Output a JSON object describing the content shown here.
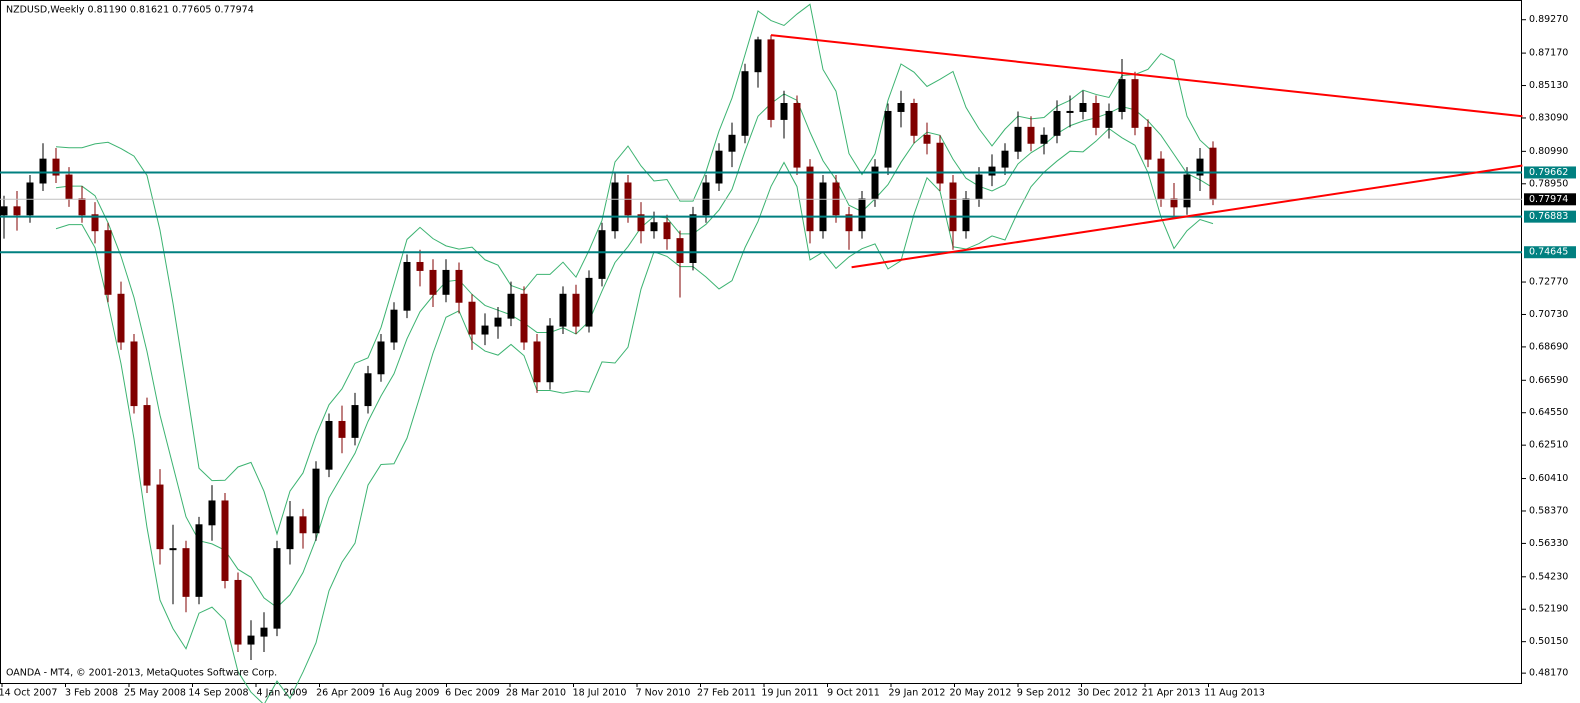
{
  "chart_data": {
    "type": "candlestick",
    "title": "NZDUSD,Weekly  0.81190 0.81621 0.77605 0.77974",
    "footer": "OANDA - MT4, © 2001-2013, MetaQuotes Software Corp.",
    "up_color": "#000000",
    "down_color": "#800000",
    "band_color": "#3cb371",
    "ylim": [
      0.4755,
      0.9051
    ],
    "yticks": [
      {
        "value": 0.8927,
        "label": "0.89270"
      },
      {
        "value": 0.8717,
        "label": "0.87170"
      },
      {
        "value": 0.8513,
        "label": "0.85130"
      },
      {
        "value": 0.8309,
        "label": "0.83090"
      },
      {
        "value": 0.8099,
        "label": "0.80990"
      },
      {
        "value": 0.7895,
        "label": "0.78950"
      },
      {
        "value": 0.7277,
        "label": "0.72770"
      },
      {
        "value": 0.7073,
        "label": "0.70730"
      },
      {
        "value": 0.6869,
        "label": "0.68690"
      },
      {
        "value": 0.6659,
        "label": "0.66590"
      },
      {
        "value": 0.6455,
        "label": "0.64550"
      },
      {
        "value": 0.6251,
        "label": "0.62510"
      },
      {
        "value": 0.6041,
        "label": "0.60410"
      },
      {
        "value": 0.5837,
        "label": "0.58370"
      },
      {
        "value": 0.5633,
        "label": "0.56330"
      },
      {
        "value": 0.5423,
        "label": "0.54230"
      },
      {
        "value": 0.5219,
        "label": "0.52190"
      },
      {
        "value": 0.5015,
        "label": "0.50150"
      },
      {
        "value": 0.4817,
        "label": "0.48170"
      }
    ],
    "xticks": [
      "14 Oct 2007",
      "3 Feb 2008",
      "25 May 2008",
      "14 Sep 2008",
      "4 Jan 2009",
      "26 Apr 2009",
      "16 Aug 2009",
      "6 Dec 2009",
      "28 Mar 2010",
      "18 Jul 2010",
      "7 Nov 2010",
      "27 Feb 2011",
      "19 Jun 2011",
      "9 Oct 2011",
      "29 Jan 2012",
      "20 May 2012",
      "9 Sep 2012",
      "30 Dec 2012",
      "21 Apr 2013",
      "11 Aug 2013"
    ],
    "hlines": [
      {
        "value": 0.79662,
        "color": "#008080"
      },
      {
        "value": 0.76883,
        "color": "#008080"
      },
      {
        "value": 0.74645,
        "color": "#008080"
      }
    ],
    "current_price": 0.77974,
    "trendlines": [
      {
        "color": "#ff0000",
        "x": [
          59,
          116.8
        ],
        "y": [
          0.883,
          0.832
        ]
      },
      {
        "color": "#ff0000",
        "x": [
          65.2,
          116.8
        ],
        "y": [
          0.737,
          0.801
        ]
      }
    ],
    "candles": [
      [
        0.77,
        0.782,
        0.755,
        0.775
      ],
      [
        0.775,
        0.785,
        0.76,
        0.77
      ],
      [
        0.77,
        0.795,
        0.765,
        0.79
      ],
      [
        0.79,
        0.815,
        0.785,
        0.805
      ],
      [
        0.805,
        0.812,
        0.79,
        0.795
      ],
      [
        0.795,
        0.8,
        0.775,
        0.78
      ],
      [
        0.78,
        0.788,
        0.765,
        0.77
      ],
      [
        0.77,
        0.778,
        0.752,
        0.76
      ],
      [
        0.76,
        0.765,
        0.715,
        0.72
      ],
      [
        0.72,
        0.728,
        0.685,
        0.69
      ],
      [
        0.69,
        0.695,
        0.645,
        0.65
      ],
      [
        0.65,
        0.655,
        0.595,
        0.6
      ],
      [
        0.6,
        0.61,
        0.55,
        0.56
      ],
      [
        0.56,
        0.575,
        0.525,
        0.56
      ],
      [
        0.56,
        0.565,
        0.52,
        0.53
      ],
      [
        0.53,
        0.58,
        0.525,
        0.575
      ],
      [
        0.575,
        0.6,
        0.565,
        0.59
      ],
      [
        0.59,
        0.595,
        0.535,
        0.54
      ],
      [
        0.54,
        0.545,
        0.495,
        0.5
      ],
      [
        0.5,
        0.515,
        0.49,
        0.505
      ],
      [
        0.505,
        0.52,
        0.495,
        0.51
      ],
      [
        0.51,
        0.565,
        0.505,
        0.56
      ],
      [
        0.56,
        0.59,
        0.55,
        0.58
      ],
      [
        0.58,
        0.585,
        0.56,
        0.57
      ],
      [
        0.57,
        0.615,
        0.565,
        0.61
      ],
      [
        0.61,
        0.645,
        0.605,
        0.64
      ],
      [
        0.64,
        0.65,
        0.62,
        0.63
      ],
      [
        0.63,
        0.658,
        0.625,
        0.65
      ],
      [
        0.65,
        0.675,
        0.645,
        0.67
      ],
      [
        0.67,
        0.695,
        0.665,
        0.69
      ],
      [
        0.69,
        0.715,
        0.685,
        0.71
      ],
      [
        0.71,
        0.745,
        0.705,
        0.74
      ],
      [
        0.74,
        0.748,
        0.725,
        0.735
      ],
      [
        0.735,
        0.742,
        0.712,
        0.72
      ],
      [
        0.72,
        0.742,
        0.715,
        0.735
      ],
      [
        0.735,
        0.74,
        0.708,
        0.715
      ],
      [
        0.715,
        0.72,
        0.685,
        0.695
      ],
      [
        0.695,
        0.708,
        0.688,
        0.7
      ],
      [
        0.7,
        0.712,
        0.692,
        0.705
      ],
      [
        0.705,
        0.728,
        0.7,
        0.72
      ],
      [
        0.72,
        0.725,
        0.685,
        0.69
      ],
      [
        0.69,
        0.695,
        0.658,
        0.665
      ],
      [
        0.665,
        0.705,
        0.66,
        0.7
      ],
      [
        0.7,
        0.725,
        0.695,
        0.72
      ],
      [
        0.72,
        0.726,
        0.695,
        0.7
      ],
      [
        0.7,
        0.735,
        0.696,
        0.73
      ],
      [
        0.73,
        0.765,
        0.725,
        0.76
      ],
      [
        0.76,
        0.797,
        0.755,
        0.79
      ],
      [
        0.79,
        0.795,
        0.765,
        0.77
      ],
      [
        0.77,
        0.778,
        0.752,
        0.76
      ],
      [
        0.76,
        0.772,
        0.755,
        0.765
      ],
      [
        0.765,
        0.77,
        0.748,
        0.755
      ],
      [
        0.755,
        0.76,
        0.718,
        0.74
      ],
      [
        0.74,
        0.775,
        0.735,
        0.77
      ],
      [
        0.77,
        0.795,
        0.765,
        0.79
      ],
      [
        0.79,
        0.815,
        0.785,
        0.81
      ],
      [
        0.81,
        0.828,
        0.8,
        0.82
      ],
      [
        0.82,
        0.865,
        0.815,
        0.86
      ],
      [
        0.86,
        0.882,
        0.85,
        0.88
      ],
      [
        0.88,
        0.883,
        0.825,
        0.83
      ],
      [
        0.83,
        0.848,
        0.818,
        0.84
      ],
      [
        0.84,
        0.845,
        0.795,
        0.8
      ],
      [
        0.8,
        0.805,
        0.752,
        0.76
      ],
      [
        0.76,
        0.795,
        0.755,
        0.79
      ],
      [
        0.79,
        0.795,
        0.765,
        0.77
      ],
      [
        0.77,
        0.775,
        0.748,
        0.76
      ],
      [
        0.76,
        0.785,
        0.755,
        0.78
      ],
      [
        0.78,
        0.805,
        0.775,
        0.8
      ],
      [
        0.8,
        0.84,
        0.795,
        0.835
      ],
      [
        0.835,
        0.848,
        0.825,
        0.84
      ],
      [
        0.84,
        0.843,
        0.815,
        0.82
      ],
      [
        0.82,
        0.828,
        0.808,
        0.815
      ],
      [
        0.815,
        0.82,
        0.785,
        0.79
      ],
      [
        0.79,
        0.795,
        0.748,
        0.76
      ],
      [
        0.76,
        0.785,
        0.755,
        0.78
      ],
      [
        0.78,
        0.8,
        0.775,
        0.795
      ],
      [
        0.795,
        0.808,
        0.788,
        0.8
      ],
      [
        0.8,
        0.815,
        0.795,
        0.81
      ],
      [
        0.81,
        0.835,
        0.805,
        0.825
      ],
      [
        0.825,
        0.832,
        0.81,
        0.815
      ],
      [
        0.815,
        0.825,
        0.808,
        0.82
      ],
      [
        0.82,
        0.842,
        0.815,
        0.835
      ],
      [
        0.835,
        0.845,
        0.825,
        0.835
      ],
      [
        0.835,
        0.848,
        0.83,
        0.84
      ],
      [
        0.84,
        0.845,
        0.82,
        0.825
      ],
      [
        0.825,
        0.84,
        0.818,
        0.835
      ],
      [
        0.835,
        0.868,
        0.83,
        0.855
      ],
      [
        0.855,
        0.86,
        0.82,
        0.825
      ],
      [
        0.825,
        0.83,
        0.8,
        0.805
      ],
      [
        0.805,
        0.81,
        0.775,
        0.78
      ],
      [
        0.78,
        0.79,
        0.768,
        0.775
      ],
      [
        0.775,
        0.8,
        0.77,
        0.795
      ],
      [
        0.795,
        0.812,
        0.785,
        0.805
      ],
      [
        0.8119,
        0.81621,
        0.77605,
        0.77974
      ]
    ]
  }
}
